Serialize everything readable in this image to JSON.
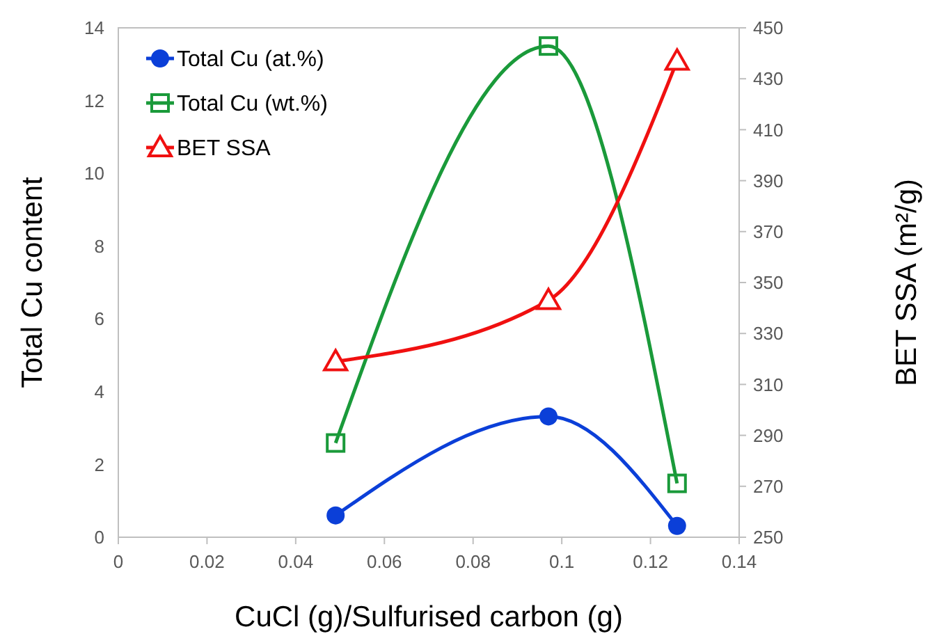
{
  "chart_data": {
    "type": "line",
    "xlabel": "CuCl (g)/Sulfurised carbon (g)",
    "ylabel": "Total Cu content",
    "y2label": "BET SSA (m²/g)",
    "x": [
      0.049,
      0.097,
      0.126
    ],
    "series": [
      {
        "name": "Total Cu (at.%)",
        "color": "#0b3fd8",
        "values": [
          0.6,
          3.32,
          0.31
        ],
        "marker": "circle"
      },
      {
        "name": "Total Cu (wt.%)",
        "color": "#1a9a3a",
        "values": [
          2.59,
          13.5,
          1.48
        ],
        "marker": "square"
      },
      {
        "name": "BET SSA",
        "color": "#f01010",
        "values": [
          319,
          343,
          437
        ],
        "marker": "triangle",
        "axis": "y2"
      }
    ],
    "xlim": [
      0,
      0.14
    ],
    "xticks": [
      0,
      0.02,
      0.04,
      0.06,
      0.08,
      0.1,
      0.12,
      0.14
    ],
    "ylim": [
      0,
      14
    ],
    "yticks": [
      0,
      2,
      4,
      6,
      8,
      10,
      12,
      14
    ],
    "y2lim": [
      250,
      450
    ],
    "y2ticks": [
      250,
      270,
      290,
      310,
      330,
      350,
      370,
      390,
      410,
      430,
      450
    ],
    "grid": false,
    "legend": "top left"
  }
}
